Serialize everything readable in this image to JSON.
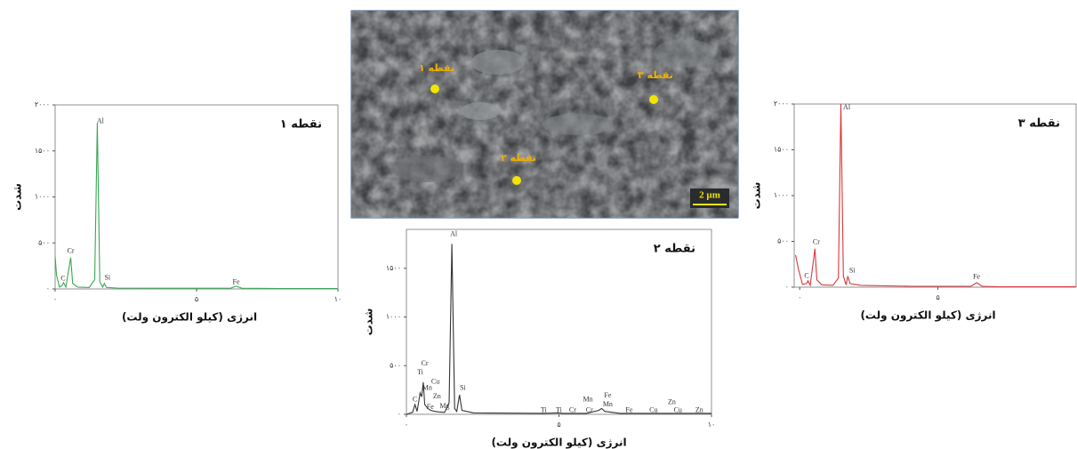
{
  "chart_data": [
    {
      "type": "line",
      "title": "نقطه ۱",
      "x_label": "انرژی (کیلو الکترون ولت)",
      "y_label": "شدت",
      "xlim": [
        0,
        10
      ],
      "ylim": [
        0,
        2000
      ],
      "xticks": [
        {
          "value": 0,
          "label": "۰"
        },
        {
          "value": 5,
          "label": "۵"
        },
        {
          "value": 10,
          "label": "۱۰"
        }
      ],
      "yticks": [
        {
          "value": 0,
          "label": "۰"
        },
        {
          "value": 500,
          "label": "۵۰۰"
        },
        {
          "value": 1000,
          "label": "۱۰۰۰"
        },
        {
          "value": 1500,
          "label": "۱۵۰۰"
        },
        {
          "value": 2000,
          "label": "۲۰۰۰"
        }
      ],
      "color": "#3aa655",
      "x": [
        0,
        0.05,
        0.15,
        0.25,
        0.3,
        0.38,
        0.5,
        0.55,
        0.62,
        0.8,
        1.2,
        1.4,
        1.49,
        1.58,
        1.68,
        1.74,
        1.82,
        2.2,
        4,
        6.2,
        6.4,
        6.6,
        8,
        10
      ],
      "values": [
        350,
        150,
        20,
        40,
        70,
        20,
        250,
        340,
        60,
        20,
        15,
        100,
        1800,
        80,
        20,
        60,
        15,
        10,
        8,
        8,
        30,
        8,
        5,
        5
      ],
      "annotations": [
        {
          "text": "C",
          "x": 0.28,
          "y": 110
        },
        {
          "text": "Cr",
          "x": 0.55,
          "y": 410
        },
        {
          "text": "Al",
          "x": 1.6,
          "y": 1820
        },
        {
          "text": "Si",
          "x": 1.85,
          "y": 120
        },
        {
          "text": "Fe",
          "x": 6.4,
          "y": 70
        }
      ]
    },
    {
      "type": "line",
      "title": "نقطه ۲",
      "x_label": "انرژی (کیلو الکترون ولت)",
      "y_label": "شدت",
      "xlim": [
        0,
        10
      ],
      "ylim": [
        0,
        1900
      ],
      "xticks": [
        {
          "value": 0,
          "label": "۰"
        },
        {
          "value": 5,
          "label": "۵"
        },
        {
          "value": 10,
          "label": "۱۰"
        }
      ],
      "yticks": [
        {
          "value": 0,
          "label": "۰"
        },
        {
          "value": 500,
          "label": "۵۰۰"
        },
        {
          "value": 1000,
          "label": "۱۰۰۰"
        },
        {
          "value": 1500,
          "label": "۱۵۰۰"
        }
      ],
      "color": "#333333",
      "x": [
        0,
        0.2,
        0.28,
        0.35,
        0.45,
        0.5,
        0.55,
        0.6,
        0.7,
        0.8,
        0.93,
        1.05,
        1.25,
        1.4,
        1.49,
        1.58,
        1.65,
        1.74,
        1.82,
        2.2,
        4.5,
        4.95,
        5.1,
        5.4,
        5.9,
        6.3,
        6.4,
        6.5,
        7,
        8,
        10
      ],
      "values": [
        0,
        20,
        100,
        30,
        220,
        180,
        330,
        100,
        60,
        40,
        30,
        25,
        20,
        120,
        1750,
        60,
        30,
        200,
        40,
        15,
        10,
        15,
        10,
        10,
        10,
        40,
        60,
        30,
        10,
        10,
        10
      ],
      "annotations": [
        {
          "text": "C",
          "x": 0.28,
          "y": 150
        },
        {
          "text": "Ti",
          "x": 0.45,
          "y": 430
        },
        {
          "text": "Cr",
          "x": 0.6,
          "y": 520
        },
        {
          "text": "Mn",
          "x": 0.68,
          "y": 270
        },
        {
          "text": "Cu",
          "x": 0.95,
          "y": 330
        },
        {
          "text": "Zn",
          "x": 1.0,
          "y": 180
        },
        {
          "text": "Fe",
          "x": 0.78,
          "y": 70
        },
        {
          "text": "Mg",
          "x": 1.25,
          "y": 80
        },
        {
          "text": "Al",
          "x": 1.55,
          "y": 1850
        },
        {
          "text": "Si",
          "x": 1.85,
          "y": 270
        },
        {
          "text": "Ti",
          "x": 4.5,
          "y": 40
        },
        {
          "text": "Ti",
          "x": 5.0,
          "y": 40
        },
        {
          "text": "Cr",
          "x": 5.45,
          "y": 40
        },
        {
          "text": "Mn",
          "x": 5.95,
          "y": 150
        },
        {
          "text": "Cr",
          "x": 6.0,
          "y": 40
        },
        {
          "text": "Fe",
          "x": 6.6,
          "y": 190
        },
        {
          "text": "Mn",
          "x": 6.6,
          "y": 100
        },
        {
          "text": "Fe",
          "x": 7.3,
          "y": 40
        },
        {
          "text": "Cu",
          "x": 8.1,
          "y": 40
        },
        {
          "text": "Zn",
          "x": 8.7,
          "y": 120
        },
        {
          "text": "Cu",
          "x": 8.9,
          "y": 40
        },
        {
          "text": "Zn",
          "x": 9.6,
          "y": 40
        }
      ]
    },
    {
      "type": "line",
      "title": "نقطه ۳",
      "x_label": "انرژی (کیلو الکترون ولت)",
      "y_label": "شدت",
      "xlim": [
        -0.2,
        10
      ],
      "ylim": [
        0,
        2000
      ],
      "xticks": [
        {
          "value": 0,
          "label": "۰"
        },
        {
          "value": 5,
          "label": "۵"
        }
      ],
      "yticks": [
        {
          "value": 0,
          "label": "۰"
        },
        {
          "value": 500,
          "label": "۵۰۰"
        },
        {
          "value": 1000,
          "label": "۱۰۰۰"
        },
        {
          "value": 1500,
          "label": "۱۵۰۰"
        },
        {
          "value": 2000,
          "label": "۲۰۰۰"
        }
      ],
      "color": "#d9373a",
      "x": [
        -0.15,
        -0.05,
        0.1,
        0.25,
        0.3,
        0.38,
        0.5,
        0.55,
        0.62,
        0.8,
        1.2,
        1.4,
        1.49,
        1.58,
        1.68,
        1.74,
        1.82,
        2.2,
        4,
        6.2,
        6.4,
        6.6,
        7.2,
        8,
        10
      ],
      "values": [
        350,
        200,
        30,
        40,
        70,
        20,
        300,
        420,
        80,
        25,
        20,
        100,
        2000,
        120,
        25,
        120,
        40,
        20,
        10,
        10,
        50,
        10,
        5,
        5,
        5
      ],
      "annotations": [
        {
          "text": "C",
          "x": 0.25,
          "y": 120
        },
        {
          "text": "Cr",
          "x": 0.6,
          "y": 490
        },
        {
          "text": "Al",
          "x": 1.7,
          "y": 1960
        },
        {
          "text": "Si",
          "x": 1.9,
          "y": 180
        },
        {
          "text": "Fe",
          "x": 6.4,
          "y": 110
        }
      ]
    }
  ],
  "sem_image": {
    "points": [
      {
        "label": "نقطه ۱"
      },
      {
        "label": "نقطه ۲"
      },
      {
        "label": "نقطه ۳"
      }
    ],
    "scale_bar": "2 µm"
  }
}
